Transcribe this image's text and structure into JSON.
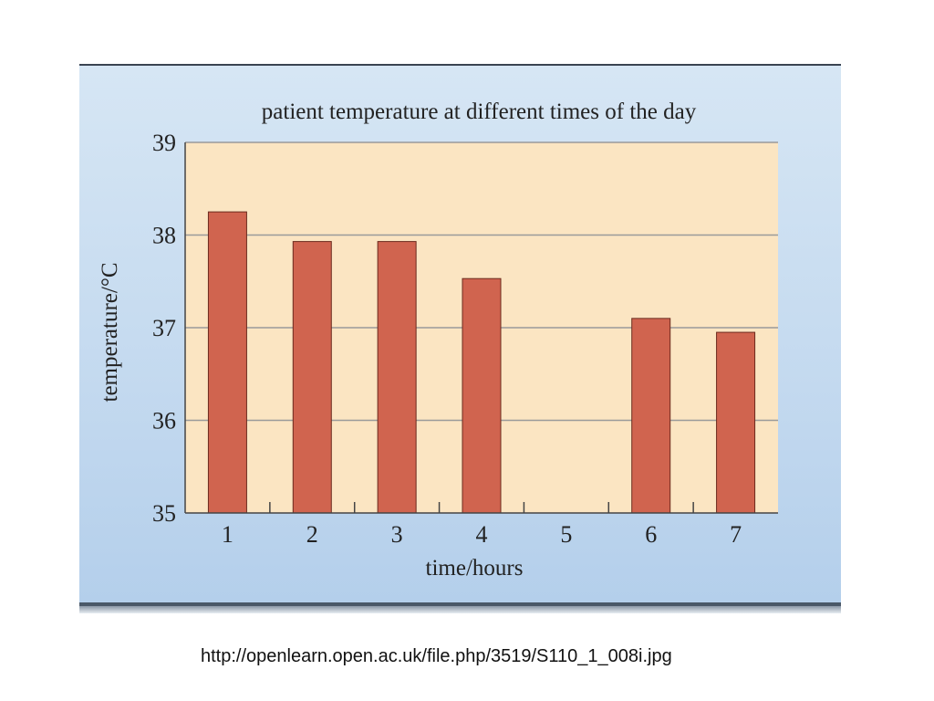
{
  "chart_data": {
    "type": "bar",
    "title": "patient temperature at different times of the day",
    "xlabel": "time/hours",
    "ylabel": "temperature/°C",
    "categories": [
      "1",
      "2",
      "3",
      "4",
      "5",
      "6",
      "7"
    ],
    "values": [
      38.25,
      37.93,
      37.93,
      37.53,
      null,
      37.1,
      36.95
    ],
    "ylim": [
      35,
      39
    ],
    "yticks": [
      "35",
      "36",
      "37",
      "38",
      "39"
    ],
    "grid": true,
    "legend": "none",
    "colors": {
      "bar": "#d0644f",
      "bar_edge": "#6b2a1e",
      "plot_background": "#fbe5c2",
      "gridline": "#9a9a9a",
      "panel_background": "#c7dcf0"
    }
  },
  "caption": "http://openlearn.open.ac.uk/file.php/3519/S110_1_008i.jpg"
}
